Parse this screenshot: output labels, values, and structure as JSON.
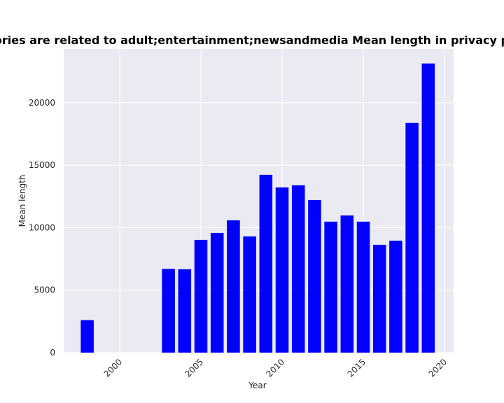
{
  "chart_data": {
    "type": "bar",
    "title": "h categories are related to adult;entertainment;newsandmedia Mean length in privacy policies l",
    "x_label": "Year",
    "y_label": "Mean length",
    "x": [
      1998,
      2003,
      2004,
      2005,
      2006,
      2007,
      2008,
      2009,
      2010,
      2011,
      2012,
      2013,
      2014,
      2015,
      2016,
      2017,
      2018,
      2019
    ],
    "values": [
      2600,
      6700,
      6670,
      9020,
      9580,
      10590,
      9300,
      14230,
      13220,
      13390,
      12210,
      10480,
      10980,
      10480,
      8630,
      8960,
      18380,
      23140
    ],
    "color": "#0000ff",
    "xlim": [
      1996.55,
      2020.56
    ],
    "xticks": [
      2000,
      2005,
      2010,
      2015,
      2020
    ],
    "ylim": [
      0,
      24300
    ],
    "yticks": [
      0,
      5000,
      10000,
      15000,
      20000
    ],
    "grid": true
  }
}
